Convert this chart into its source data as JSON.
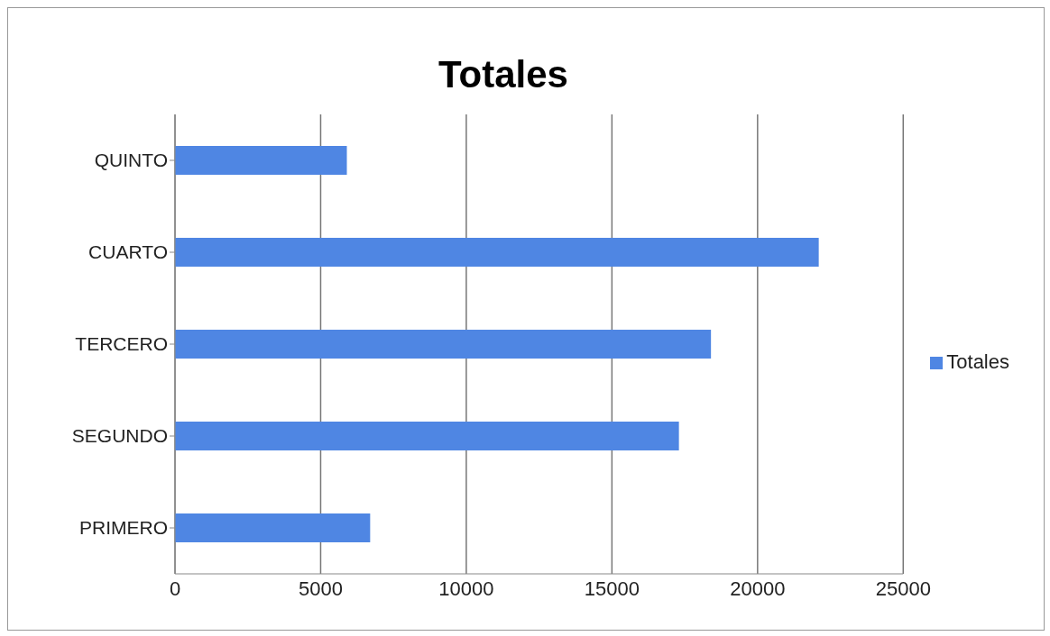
{
  "chart_data": {
    "type": "bar",
    "orientation": "horizontal",
    "title": "Totales",
    "categories": [
      "QUINTO",
      "CUARTO",
      "TERCERO",
      "SEGUNDO",
      "PRIMERO"
    ],
    "series": [
      {
        "name": "Totales",
        "color": "#4f86e3",
        "values": [
          5900,
          22100,
          18400,
          17300,
          6700
        ]
      }
    ],
    "xlim": [
      0,
      25000
    ],
    "xticks": [
      0,
      5000,
      10000,
      15000,
      20000,
      25000
    ],
    "grid": "x",
    "legend": "right"
  }
}
